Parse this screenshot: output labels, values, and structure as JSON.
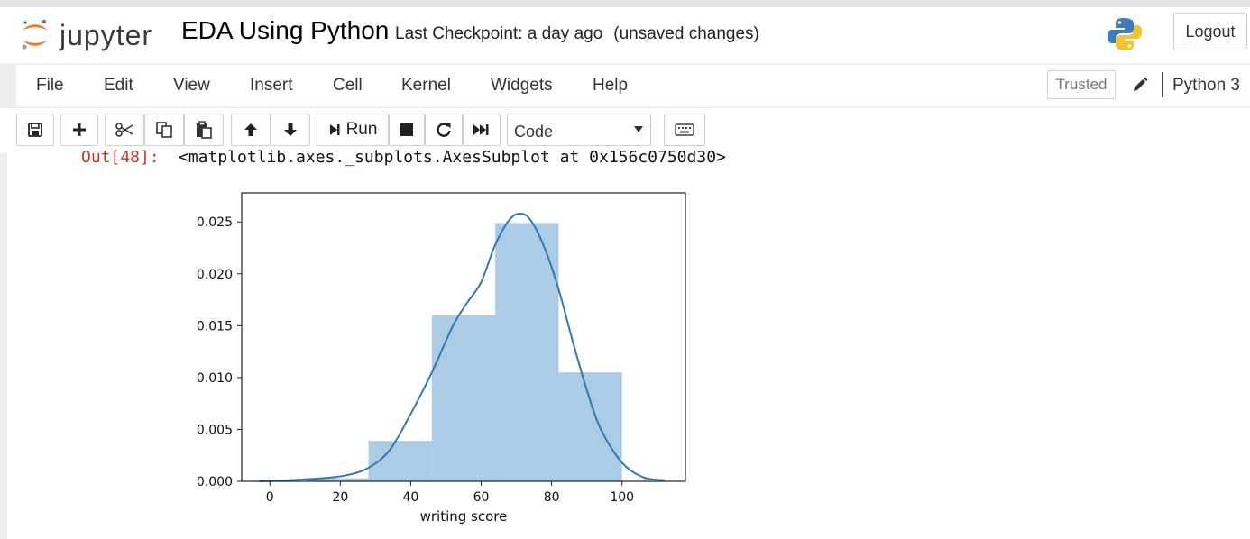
{
  "header": {
    "logo_text": "jupyter",
    "notebook_title": "EDA Using Python",
    "checkpoint": "Last Checkpoint: a day ago",
    "save_status": "(unsaved changes)",
    "logout_label": "Logout",
    "logo_icon": "jupyter-logo-icon",
    "kernel_logo_icon": "python-logo-icon"
  },
  "menubar": {
    "items": [
      "File",
      "Edit",
      "View",
      "Insert",
      "Cell",
      "Kernel",
      "Widgets",
      "Help"
    ],
    "trusted_label": "Trusted",
    "kernel_name": "Python 3"
  },
  "toolbar": {
    "run_label": "Run",
    "cell_type": "Code",
    "icons": [
      "save-icon",
      "plus-icon",
      "cut-icon",
      "copy-icon",
      "paste-icon",
      "arrow-up-icon",
      "arrow-down-icon",
      "run-icon",
      "stop-icon",
      "restart-icon",
      "fast-forward-icon",
      "keyboard-icon"
    ]
  },
  "output": {
    "prompt": "Out[48]:",
    "text": "<matplotlib.axes._subplots.AxesSubplot at 0x156c0750d30>"
  },
  "colors": {
    "bar_fill": "#a8c8e4",
    "kde_line": "#3477b0",
    "out_prompt": "#c0392b"
  },
  "chart_data": {
    "type": "bar",
    "title": "",
    "xlabel": "writing score",
    "ylabel": "",
    "xlim": [
      -8,
      118
    ],
    "ylim": [
      0,
      0.0278
    ],
    "xticks": [
      0,
      20,
      40,
      60,
      80,
      100
    ],
    "xtick_labels": [
      "0",
      "20",
      "40",
      "60",
      "80",
      "100"
    ],
    "yticks": [
      0.0,
      0.005,
      0.01,
      0.015,
      0.02,
      0.025
    ],
    "ytick_labels": [
      "0.000",
      "0.005",
      "0.010",
      "0.015",
      "0.020",
      "0.025"
    ],
    "bins": [
      {
        "x0": 10,
        "x1": 28,
        "value": 0.0003
      },
      {
        "x0": 28,
        "x1": 46,
        "value": 0.0039
      },
      {
        "x0": 46,
        "x1": 64,
        "value": 0.016
      },
      {
        "x0": 64,
        "x1": 82,
        "value": 0.0249
      },
      {
        "x0": 82,
        "x1": 100,
        "value": 0.0105
      }
    ],
    "kde": {
      "x": [
        -3,
        5,
        15,
        22,
        28,
        34,
        40,
        46,
        52,
        56,
        60,
        64,
        68,
        71,
        74,
        78,
        82,
        86,
        90,
        94,
        100,
        106,
        112
      ],
      "y": [
        0.0,
        0.0001,
        0.0003,
        0.0006,
        0.0013,
        0.003,
        0.0065,
        0.0105,
        0.015,
        0.0172,
        0.0192,
        0.0228,
        0.0252,
        0.0258,
        0.0252,
        0.0225,
        0.0185,
        0.0135,
        0.0088,
        0.005,
        0.0018,
        0.0004,
        0.0001
      ]
    },
    "grid": false
  }
}
